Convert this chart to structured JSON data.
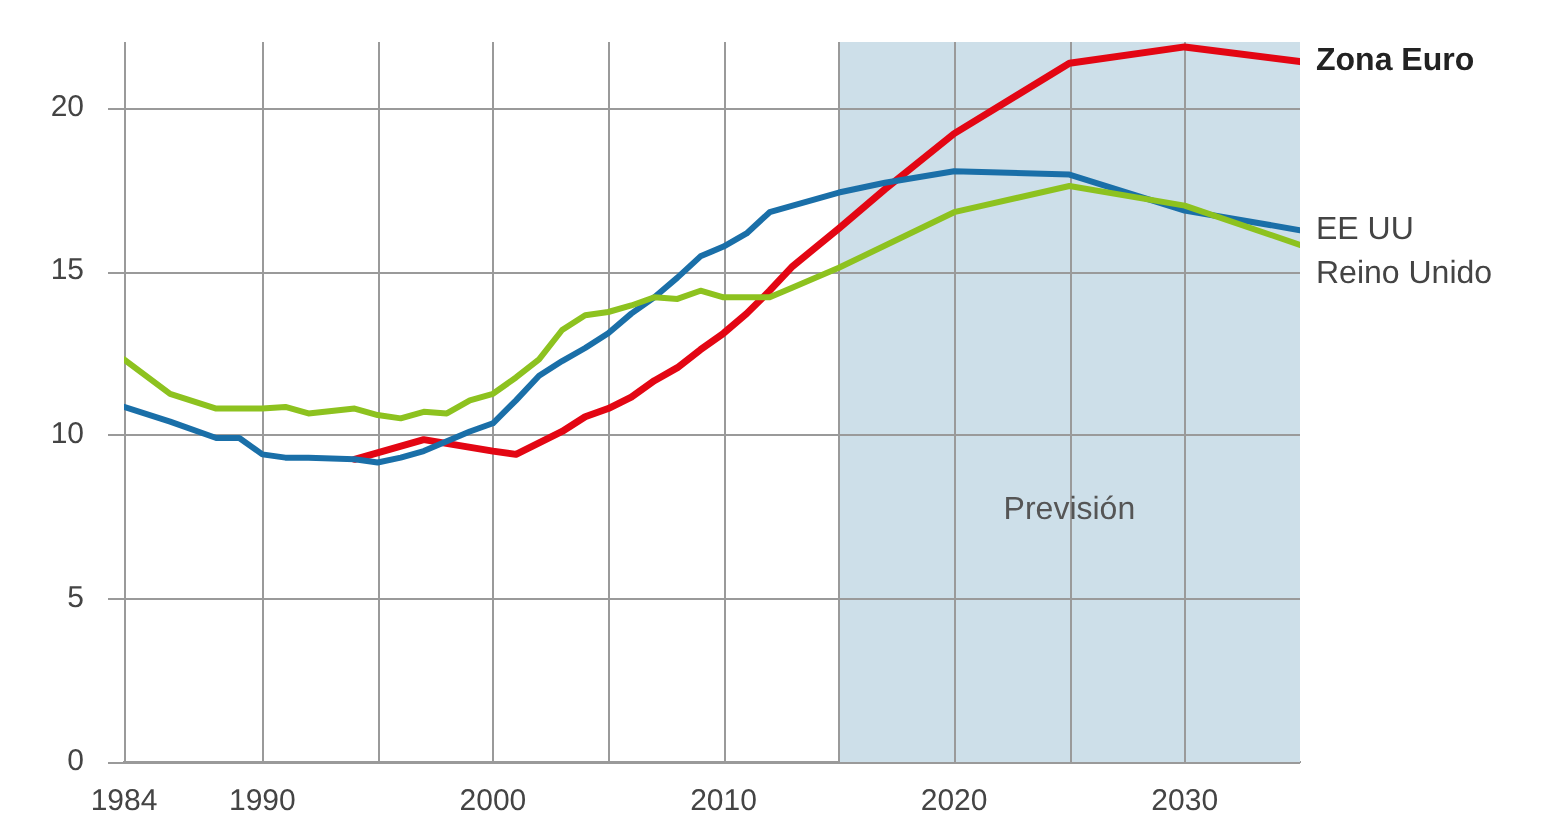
{
  "chart_data": {
    "type": "line",
    "xlim": [
      1984,
      2035
    ],
    "xticks": [
      1984,
      1990,
      {
        "value": 1995,
        "label": null
      },
      2000,
      {
        "value": 2005,
        "label": null
      },
      2010,
      {
        "value": 2015,
        "label": null
      },
      2020,
      {
        "value": 2025,
        "label": null
      },
      2030
    ],
    "ylim": [
      0,
      22
    ],
    "yticks": [
      0,
      5,
      10,
      15,
      20
    ],
    "grid": true,
    "legend": false,
    "marker": "none",
    "line_style": "solid",
    "bands": [
      {
        "axis": "x",
        "from": 2015,
        "to": 2035,
        "label": "Previsión",
        "color": "#cddfe9"
      }
    ],
    "series": [
      {
        "name": "Reino Unido",
        "color": "#8dc21f",
        "x": [
          1984,
          1986,
          1988,
          1990,
          1991,
          1992,
          1994,
          1995,
          1996,
          1997,
          1998,
          1999,
          2000,
          2001,
          2002,
          2003,
          2004,
          2005,
          2006,
          2007,
          2008,
          2009,
          2010,
          2012,
          2013,
          2015,
          2020,
          2025,
          2030,
          2035
        ],
        "values": [
          12.3,
          11.25,
          10.8,
          10.8,
          10.85,
          10.65,
          10.8,
          10.6,
          10.5,
          10.7,
          10.65,
          11.05,
          11.25,
          11.75,
          12.3,
          13.2,
          13.65,
          13.75,
          13.95,
          14.2,
          14.15,
          14.4,
          14.2,
          14.2,
          14.5,
          15.1,
          16.8,
          17.6,
          17.0,
          15.8
        ]
      },
      {
        "name": "EE UU",
        "color": "#1a6fa8",
        "x": [
          1984,
          1986,
          1988,
          1989,
          1990,
          1991,
          1992,
          1994,
          1995,
          1996,
          1997,
          1998,
          1999,
          2000,
          2001,
          2002,
          2003,
          2004,
          2005,
          2006,
          2007,
          2008,
          2009,
          2010,
          2011,
          2012,
          2013,
          2015,
          2017,
          2020,
          2025,
          2030,
          2035
        ],
        "values": [
          10.85,
          10.4,
          9.9,
          9.9,
          9.4,
          9.3,
          9.3,
          9.25,
          9.15,
          9.3,
          9.5,
          9.8,
          10.1,
          10.35,
          11.05,
          11.8,
          12.25,
          12.65,
          13.1,
          13.7,
          14.2,
          14.8,
          15.45,
          15.75,
          16.15,
          16.8,
          17.0,
          17.4,
          17.7,
          18.05,
          17.95,
          16.85,
          16.25
        ]
      },
      {
        "name": "Zona Euro",
        "color": "#e30613",
        "x": [
          1994,
          1997,
          2000,
          2001,
          2003,
          2004,
          2005,
          2006,
          2007,
          2008,
          2009,
          2010,
          2011,
          2012,
          2013,
          2015,
          2017,
          2020,
          2025,
          2030,
          2035
        ],
        "values": [
          9.25,
          9.85,
          9.5,
          9.4,
          10.1,
          10.55,
          10.8,
          11.15,
          11.65,
          12.05,
          12.6,
          13.1,
          13.7,
          14.4,
          15.15,
          16.3,
          17.5,
          19.2,
          21.35,
          21.85,
          21.4
        ]
      }
    ]
  }
}
